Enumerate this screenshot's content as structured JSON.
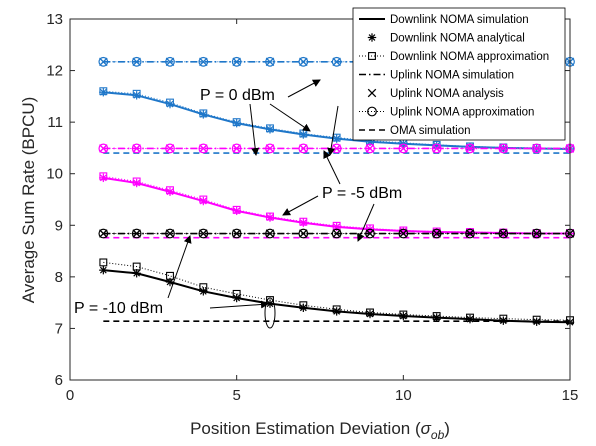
{
  "chart_data": {
    "type": "line",
    "xlabel": "Position Estimation Deviation (",
    "xlabel_symbol": "σ",
    "xlabel_sub": "ob",
    "xlabel_close": ")",
    "ylabel": "Average Sum Rate (BPCU)",
    "xlim": [
      0,
      15
    ],
    "ylim": [
      6,
      13
    ],
    "xticks": [
      0,
      5,
      10,
      15
    ],
    "yticks": [
      6,
      7,
      8,
      9,
      10,
      11,
      12,
      13
    ],
    "grid": false,
    "legend_placement": "top-right",
    "legend": [
      {
        "label": "Downlink NOMA simulation",
        "style": "solid",
        "marker": "none"
      },
      {
        "label": "Downlink NOMA analytical",
        "style": "none",
        "marker": "asterisk"
      },
      {
        "label": "Downlink NOMA approximation",
        "style": "dotted",
        "marker": "square"
      },
      {
        "label": "Uplink NOMA simulation",
        "style": "dashdot",
        "marker": "none"
      },
      {
        "label": "Uplink NOMA analysis",
        "style": "none",
        "marker": "cross"
      },
      {
        "label": "Uplink NOMA approximation",
        "style": "dotted",
        "marker": "circle"
      },
      {
        "label": "OMA simulation",
        "style": "dashed",
        "marker": "none"
      }
    ],
    "annotations": [
      {
        "text": "P = 0 dBm"
      },
      {
        "text": "P = -5 dBm"
      },
      {
        "text": "P = -10 dBm"
      }
    ],
    "x": [
      1,
      2,
      3,
      4,
      5,
      6,
      7,
      8,
      9,
      10,
      11,
      12,
      13,
      14,
      15
    ],
    "groups": [
      {
        "power": "P = 0 dBm",
        "color": "#1f77c9",
        "downlink_sim": [
          11.58,
          11.52,
          11.35,
          11.15,
          10.98,
          10.86,
          10.76,
          10.68,
          10.62,
          10.58,
          10.55,
          10.52,
          10.5,
          10.49,
          10.48
        ],
        "downlink_analytical": [
          11.58,
          11.52,
          11.35,
          11.15,
          10.98,
          10.86,
          10.76,
          10.68,
          10.62,
          10.58,
          10.55,
          10.52,
          10.5,
          10.49,
          10.48
        ],
        "downlink_approx": [
          11.6,
          11.55,
          11.38,
          11.17,
          11.0,
          10.88,
          10.78,
          10.7,
          10.64,
          10.6,
          10.56,
          10.53,
          10.51,
          10.5,
          10.49
        ],
        "uplink": 12.17,
        "oma": 10.4
      },
      {
        "power": "P = -5 dBm",
        "color": "#ff00ff",
        "downlink_sim": [
          9.92,
          9.82,
          9.65,
          9.47,
          9.28,
          9.15,
          9.05,
          8.97,
          8.92,
          8.89,
          8.87,
          8.86,
          8.85,
          8.84,
          8.84
        ],
        "downlink_analytical": [
          9.92,
          9.82,
          9.65,
          9.47,
          9.28,
          9.15,
          9.05,
          8.97,
          8.92,
          8.89,
          8.87,
          8.86,
          8.85,
          8.84,
          8.84
        ],
        "downlink_approx": [
          9.95,
          9.85,
          9.68,
          9.5,
          9.3,
          9.17,
          9.07,
          8.99,
          8.94,
          8.9,
          8.88,
          8.87,
          8.86,
          8.85,
          8.85
        ],
        "uplink": 10.49,
        "oma": 8.76
      },
      {
        "power": "P = -10 dBm",
        "color": "#000000",
        "downlink_sim": [
          8.13,
          8.07,
          7.9,
          7.72,
          7.59,
          7.48,
          7.4,
          7.33,
          7.28,
          7.24,
          7.21,
          7.18,
          7.15,
          7.13,
          7.12
        ],
        "downlink_analytical": [
          8.13,
          8.07,
          7.9,
          7.72,
          7.59,
          7.48,
          7.4,
          7.33,
          7.28,
          7.24,
          7.21,
          7.18,
          7.15,
          7.13,
          7.12
        ],
        "downlink_approx": [
          8.28,
          8.2,
          8.02,
          7.8,
          7.67,
          7.55,
          7.45,
          7.37,
          7.31,
          7.27,
          7.24,
          7.21,
          7.19,
          7.17,
          7.16
        ],
        "uplink": 8.84,
        "oma": 7.14
      }
    ]
  }
}
